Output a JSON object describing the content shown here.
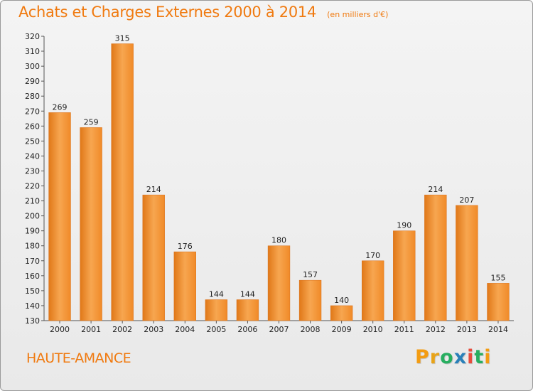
{
  "chart_data": {
    "type": "bar",
    "title": "Achats et Charges Externes 2000 à 2014",
    "unit_note": "(en milliers d'€)",
    "categories": [
      "2000",
      "2001",
      "2002",
      "2003",
      "2004",
      "2005",
      "2006",
      "2007",
      "2008",
      "2009",
      "2010",
      "2011",
      "2012",
      "2013",
      "2014"
    ],
    "values": [
      269,
      259,
      315,
      214,
      176,
      144,
      144,
      180,
      157,
      140,
      170,
      190,
      214,
      207,
      155
    ],
    "ylim": [
      130,
      320
    ],
    "ytick_step": 10,
    "grid": false,
    "xlabel": "",
    "ylabel": "",
    "bar_color": "#f08a28",
    "bar_color_light": "#f7a650",
    "bar_color_dark": "#e07818"
  },
  "footer": {
    "commune": "HAUTE-AMANCE",
    "logo_letters": [
      "P",
      "r",
      "o",
      "x",
      "i",
      "t",
      "i"
    ],
    "logo_colors": [
      "#f39c12",
      "#e8a317",
      "#27ae60",
      "#2980b9",
      "#e74c3c",
      "#27ae60",
      "#f39c12"
    ]
  },
  "theme": {
    "accent": "#f07a10"
  }
}
